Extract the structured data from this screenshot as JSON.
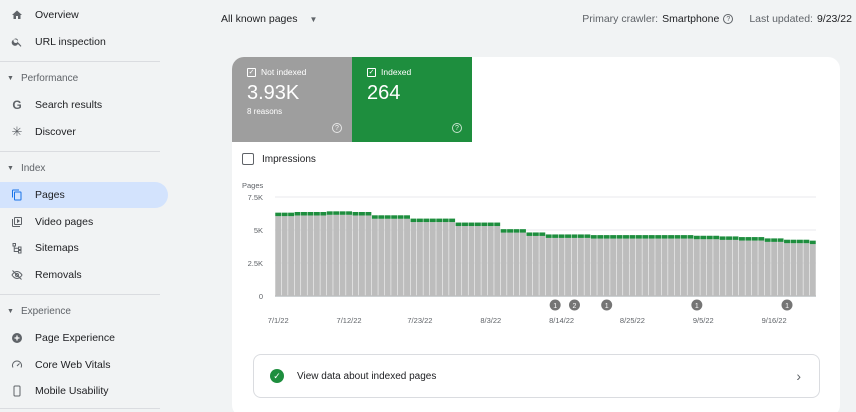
{
  "sidebar": {
    "items": [
      {
        "label": "Overview",
        "icon": "home-icon"
      },
      {
        "label": "URL inspection",
        "icon": "search-icon"
      },
      {
        "label": "Search results",
        "icon": "google-g-icon"
      },
      {
        "label": "Discover",
        "icon": "asterisk-icon"
      },
      {
        "label": "Pages",
        "icon": "pages-icon",
        "active": true
      },
      {
        "label": "Video pages",
        "icon": "video-pages-icon"
      },
      {
        "label": "Sitemaps",
        "icon": "sitemap-icon"
      },
      {
        "label": "Removals",
        "icon": "eye-off-icon"
      },
      {
        "label": "Page Experience",
        "icon": "plus-circle-icon"
      },
      {
        "label": "Core Web Vitals",
        "icon": "gauge-icon"
      },
      {
        "label": "Mobile Usability",
        "icon": "phone-icon"
      }
    ],
    "sections": {
      "performance": "Performance",
      "index": "Index",
      "experience": "Experience"
    }
  },
  "topbar": {
    "filter": "All known pages",
    "crawler_label": "Primary crawler:",
    "crawler_value": "Smartphone",
    "updated_label": "Last updated:",
    "updated_value": "9/23/22"
  },
  "metrics": {
    "not_indexed": {
      "label": "Not indexed",
      "value": "3.93K",
      "sub": "8 reasons",
      "color": "#9e9e9e"
    },
    "indexed": {
      "label": "Indexed",
      "value": "264",
      "color": "#1e8e3e"
    }
  },
  "impressions_label": "Impressions",
  "view_data_label": "View data about indexed pages",
  "chart_data": {
    "type": "bar",
    "stacked": true,
    "ylabel": "Pages",
    "ylim": [
      0,
      7500
    ],
    "yticks": [
      "0",
      "2.5K",
      "5K",
      "7.5K"
    ],
    "grid": true,
    "x_tick_labels": [
      "7/1/22",
      "7/12/22",
      "7/23/22",
      "8/3/22",
      "8/14/22",
      "8/25/22",
      "9/5/22",
      "9/16/22"
    ],
    "colors": {
      "not_indexed": "#bdbdbd",
      "indexed": "#1e8e3e"
    },
    "series": [
      {
        "name": "Not indexed",
        "values": [
          6050,
          6050,
          6050,
          6100,
          6100,
          6100,
          6100,
          6100,
          6150,
          6150,
          6150,
          6150,
          6100,
          6100,
          6100,
          5850,
          5850,
          5850,
          5850,
          5850,
          5850,
          5600,
          5600,
          5600,
          5600,
          5600,
          5600,
          5600,
          5300,
          5300,
          5300,
          5300,
          5300,
          5300,
          5300,
          4800,
          4800,
          4800,
          4800,
          4550,
          4550,
          4550,
          4400,
          4400,
          4400,
          4400,
          4400,
          4400,
          4400,
          4350,
          4350,
          4350,
          4350,
          4350,
          4350,
          4350,
          4350,
          4350,
          4350,
          4350,
          4350,
          4350,
          4350,
          4350,
          4350,
          4300,
          4300,
          4300,
          4300,
          4250,
          4250,
          4250,
          4200,
          4200,
          4200,
          4200,
          4100,
          4100,
          4100,
          4000,
          4000,
          4000,
          4000,
          3930
        ]
      },
      {
        "name": "Indexed",
        "values": [
          264,
          264,
          264,
          264,
          264,
          264,
          264,
          264,
          264,
          264,
          264,
          264,
          264,
          264,
          264,
          264,
          264,
          264,
          264,
          264,
          264,
          264,
          264,
          264,
          264,
          264,
          264,
          264,
          264,
          264,
          264,
          264,
          264,
          264,
          264,
          264,
          264,
          264,
          264,
          264,
          264,
          264,
          264,
          264,
          264,
          264,
          264,
          264,
          264,
          264,
          264,
          264,
          264,
          264,
          264,
          264,
          264,
          264,
          264,
          264,
          264,
          264,
          264,
          264,
          264,
          264,
          264,
          264,
          264,
          264,
          264,
          264,
          264,
          264,
          264,
          264,
          264,
          264,
          264,
          264,
          264,
          264,
          264,
          264
        ]
      }
    ],
    "annotations": [
      {
        "label": "1",
        "x_index": 43
      },
      {
        "label": "2",
        "x_index": 46
      },
      {
        "label": "1",
        "x_index": 51
      },
      {
        "label": "1",
        "x_index": 65
      },
      {
        "label": "1",
        "x_index": 79
      }
    ]
  }
}
